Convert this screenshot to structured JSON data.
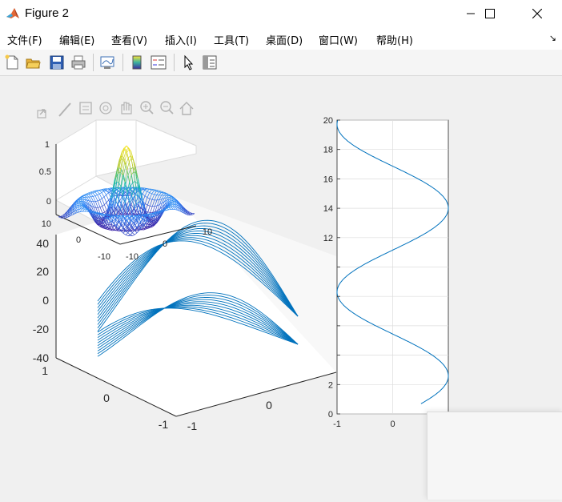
{
  "window": {
    "title": "Figure 2",
    "minimize_icon": "minimize-icon",
    "maximize_icon": "maximize-icon",
    "close_icon": "close-icon"
  },
  "menu": {
    "items": [
      {
        "label": "文件(F)"
      },
      {
        "label": "编辑(E)"
      },
      {
        "label": "查看(V)"
      },
      {
        "label": "插入(I)"
      },
      {
        "label": "工具(T)"
      },
      {
        "label": "桌面(D)"
      },
      {
        "label": "窗口(W)"
      },
      {
        "label": "帮助(H)"
      }
    ],
    "dock_icon": "dock-arrow-icon"
  },
  "toolbar": {
    "icons": [
      "new-figure-icon",
      "open-file-icon",
      "save-icon",
      "print-icon",
      "link-plot-icon",
      "insert-colorbar-icon",
      "insert-legend-icon",
      "edit-plot-pointer-icon",
      "property-inspector-icon"
    ]
  },
  "axes_toolbar": {
    "icons": [
      "export-icon",
      "brush-icon",
      "data-tips-icon",
      "rotate-3d-icon",
      "pan-icon",
      "zoom-in-icon",
      "zoom-out-icon",
      "home-icon"
    ]
  },
  "colors": {
    "line_blue": "#0072BD",
    "background": "#f0f0f0",
    "axes_face": "#ffffff",
    "grid": "#dcdcdc"
  },
  "chart_data": [
    {
      "type": "surface",
      "description_note": "",
      "x_ticks": [
        "-10",
        "0",
        "10"
      ],
      "y_ticks": [
        "-10",
        "0",
        "10"
      ],
      "z_ticks": [
        "0",
        "0.5",
        "1"
      ],
      "zlim": [
        0,
        1
      ],
      "colormap": "parula"
    },
    {
      "type": "line",
      "x_ticks": [
        "-1",
        "0",
        "1"
      ],
      "y_ticks": [
        "-1",
        "0",
        "1"
      ],
      "z_ticks": [
        "-40",
        "-20",
        "0",
        "20",
        "40"
      ],
      "zlim": [
        -40,
        40
      ],
      "series_count": 20,
      "line_color": "#0072BD"
    },
    {
      "type": "line",
      "x_ticks": [
        "-1",
        "0",
        "1"
      ],
      "y_ticks": [
        "0",
        "2",
        "12",
        "14",
        "16",
        "18",
        "20"
      ],
      "ylim": [
        0,
        20
      ],
      "xlim": [
        -1,
        1
      ],
      "grid": true,
      "line_color": "#0072BD"
    }
  ],
  "overlay_label": "1"
}
